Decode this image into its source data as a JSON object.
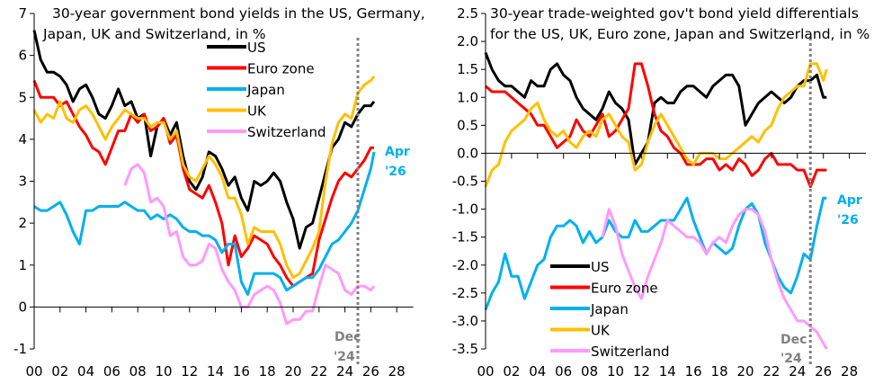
{
  "chart_data": [
    {
      "type": "line",
      "title_lines": [
        "30-year government bond yields in the US, Germany,",
        "Japan, UK and Switzerland, in %"
      ],
      "xlabel": "",
      "ylabel": "",
      "xlim": [
        2000,
        2029
      ],
      "ylim": [
        -1,
        7
      ],
      "yticks": [
        -1,
        0,
        1,
        2,
        3,
        4,
        5,
        6,
        7
      ],
      "ytick_labels": [
        "-1",
        "0",
        "1",
        "2",
        "3",
        "4",
        "5",
        "6",
        "7"
      ],
      "xticks": [
        2000,
        2002,
        2004,
        2006,
        2008,
        2010,
        2012,
        2014,
        2016,
        2018,
        2020,
        2022,
        2024,
        2026,
        2028
      ],
      "xtick_labels": [
        "00",
        "02",
        "04",
        "06",
        "08",
        "10",
        "12",
        "14",
        "16",
        "18",
        "20",
        "22",
        "24",
        "26",
        "28"
      ],
      "grid": false,
      "legend_position": "top-center",
      "vline": {
        "x": 2025.0,
        "label_lines": [
          "Dec",
          "'24"
        ],
        "color": "#808080"
      },
      "end_annotation": {
        "lines": [
          "Apr",
          "'26"
        ],
        "color": "#00b0f0"
      },
      "x": [
        2000.0,
        2000.5,
        2001.0,
        2001.5,
        2002.0,
        2002.5,
        2003.0,
        2003.5,
        2004.0,
        2004.5,
        2005.0,
        2005.5,
        2006.0,
        2006.5,
        2007.0,
        2007.5,
        2008.0,
        2008.5,
        2009.0,
        2009.5,
        2010.0,
        2010.5,
        2011.0,
        2011.5,
        2012.0,
        2012.5,
        2013.0,
        2013.5,
        2014.0,
        2014.5,
        2015.0,
        2015.5,
        2016.0,
        2016.5,
        2017.0,
        2017.5,
        2018.0,
        2018.5,
        2019.0,
        2019.5,
        2020.0,
        2020.5,
        2021.0,
        2021.5,
        2022.0,
        2022.5,
        2023.0,
        2023.5,
        2024.0,
        2024.5,
        2025.0,
        2025.5,
        2026.0,
        2026.25
      ],
      "series": [
        {
          "name": "US",
          "color": "#000000",
          "values": [
            6.6,
            5.9,
            5.6,
            5.6,
            5.5,
            5.3,
            4.9,
            5.2,
            5.3,
            5.0,
            4.6,
            4.5,
            4.8,
            5.2,
            4.8,
            4.9,
            4.5,
            4.6,
            3.6,
            4.3,
            4.5,
            4.1,
            4.4,
            3.6,
            3.0,
            2.8,
            3.1,
            3.7,
            3.6,
            3.3,
            2.9,
            3.1,
            2.6,
            2.3,
            3.0,
            2.9,
            3.0,
            3.2,
            3.0,
            2.5,
            2.1,
            1.4,
            1.9,
            2.0,
            2.6,
            3.2,
            3.8,
            4.0,
            4.4,
            4.3,
            4.6,
            4.8,
            4.8,
            4.9
          ]
        },
        {
          "name": "Euro zone",
          "color": "#ff0000",
          "values": [
            5.4,
            5.0,
            5.0,
            5.0,
            4.8,
            4.9,
            4.6,
            4.3,
            4.1,
            3.8,
            3.7,
            3.4,
            3.8,
            4.2,
            4.2,
            4.6,
            4.4,
            4.6,
            4.2,
            4.3,
            4.5,
            3.9,
            4.1,
            3.3,
            2.8,
            2.7,
            2.6,
            2.9,
            2.5,
            2.0,
            1.0,
            1.7,
            1.2,
            1.4,
            1.7,
            1.6,
            1.5,
            1.2,
            1.0,
            0.7,
            0.5,
            0.6,
            0.7,
            0.8,
            1.6,
            2.1,
            2.6,
            3.0,
            3.2,
            3.1,
            3.3,
            3.5,
            3.8,
            3.8
          ]
        },
        {
          "name": "Japan",
          "color": "#00b0f0",
          "values": [
            2.4,
            2.3,
            2.3,
            2.4,
            2.5,
            2.2,
            1.8,
            1.5,
            2.3,
            2.3,
            2.4,
            2.4,
            2.4,
            2.4,
            2.5,
            2.4,
            2.3,
            2.3,
            2.1,
            2.2,
            2.1,
            2.2,
            2.1,
            1.9,
            1.8,
            1.8,
            1.7,
            1.7,
            1.6,
            1.3,
            1.5,
            1.5,
            0.6,
            0.3,
            0.8,
            0.8,
            0.8,
            0.8,
            0.7,
            0.4,
            0.5,
            0.6,
            0.7,
            0.7,
            0.9,
            1.2,
            1.5,
            1.6,
            1.8,
            2.0,
            2.3,
            2.8,
            3.3,
            3.7
          ]
        },
        {
          "name": "UK",
          "color": "#ffc000",
          "values": [
            4.7,
            4.4,
            4.6,
            4.5,
            4.9,
            4.5,
            4.4,
            4.7,
            4.8,
            4.6,
            4.3,
            4.0,
            4.3,
            4.5,
            4.7,
            4.6,
            4.5,
            4.5,
            4.3,
            4.4,
            4.4,
            4.0,
            4.2,
            3.4,
            3.1,
            3.0,
            3.3,
            3.6,
            3.4,
            3.1,
            2.6,
            2.6,
            2.2,
            1.5,
            1.9,
            1.8,
            1.8,
            1.8,
            1.5,
            1.0,
            0.7,
            0.8,
            1.1,
            1.4,
            1.8,
            3.0,
            3.9,
            4.4,
            4.6,
            4.5,
            5.1,
            5.3,
            5.4,
            5.5
          ]
        },
        {
          "name": "Switzerland",
          "color": "#ff99ff",
          "values": [
            null,
            null,
            null,
            null,
            null,
            null,
            null,
            null,
            null,
            null,
            null,
            null,
            null,
            null,
            2.9,
            3.3,
            3.4,
            3.2,
            2.5,
            2.6,
            2.4,
            1.7,
            1.8,
            1.2,
            1.0,
            1.0,
            1.1,
            1.5,
            1.4,
            0.9,
            0.6,
            0.4,
            0.0,
            0.0,
            0.3,
            0.4,
            0.5,
            0.4,
            0.1,
            -0.4,
            -0.3,
            -0.3,
            -0.1,
            -0.1,
            0.5,
            1.0,
            0.9,
            0.8,
            0.4,
            0.3,
            0.5,
            0.5,
            0.4,
            0.5
          ]
        }
      ]
    },
    {
      "type": "line",
      "title_lines": [
        "30-year trade-weighted gov't bond yield differentials",
        "for the US, UK, Euro zone, Japan and Switzerland, in %"
      ],
      "xlabel": "",
      "ylabel": "",
      "xlim": [
        2000,
        2029
      ],
      "ylim": [
        -3.5,
        2.5
      ],
      "yticks": [
        -3.5,
        -3.0,
        -2.5,
        -2.0,
        -1.5,
        -1.0,
        -0.5,
        0.0,
        0.5,
        1.0,
        1.5,
        2.0,
        2.5
      ],
      "ytick_labels": [
        "-3.5",
        "-3.0",
        "-2.5",
        "-2.0",
        "-1.5",
        "-1.0",
        "-0.5",
        "0.0",
        "0.5",
        "1.0",
        "1.5",
        "2.0",
        "2.5"
      ],
      "xticks": [
        2000,
        2002,
        2004,
        2006,
        2008,
        2010,
        2012,
        2014,
        2016,
        2018,
        2020,
        2022,
        2024,
        2026,
        2028
      ],
      "xtick_labels": [
        "00",
        "02",
        "04",
        "06",
        "08",
        "10",
        "12",
        "14",
        "16",
        "18",
        "20",
        "22",
        "24",
        "26",
        "28"
      ],
      "grid": false,
      "legend_position": "bottom-left",
      "vline": {
        "x": 2025.0,
        "label_lines": [
          "Dec",
          "'24"
        ],
        "color": "#808080"
      },
      "end_annotation": {
        "lines": [
          "Apr",
          "'26"
        ],
        "color": "#00b0f0"
      },
      "x": [
        2000.0,
        2000.5,
        2001.0,
        2001.5,
        2002.0,
        2002.5,
        2003.0,
        2003.5,
        2004.0,
        2004.5,
        2005.0,
        2005.5,
        2006.0,
        2006.5,
        2007.0,
        2007.5,
        2008.0,
        2008.5,
        2009.0,
        2009.5,
        2010.0,
        2010.5,
        2011.0,
        2011.5,
        2012.0,
        2012.5,
        2013.0,
        2013.5,
        2014.0,
        2014.5,
        2015.0,
        2015.5,
        2016.0,
        2016.5,
        2017.0,
        2017.5,
        2018.0,
        2018.5,
        2019.0,
        2019.5,
        2020.0,
        2020.5,
        2021.0,
        2021.5,
        2022.0,
        2022.5,
        2023.0,
        2023.5,
        2024.0,
        2024.5,
        2025.0,
        2025.5,
        2026.0,
        2026.25
      ],
      "series": [
        {
          "name": "US",
          "color": "#000000",
          "values": [
            1.8,
            1.5,
            1.3,
            1.2,
            1.2,
            1.1,
            1.0,
            1.3,
            1.2,
            1.2,
            1.5,
            1.6,
            1.4,
            1.3,
            1.0,
            0.8,
            0.7,
            0.6,
            0.8,
            1.1,
            0.9,
            0.8,
            0.6,
            -0.2,
            0.0,
            0.2,
            0.9,
            1.0,
            0.9,
            0.9,
            1.1,
            1.2,
            1.2,
            1.1,
            1.0,
            1.2,
            1.3,
            1.4,
            1.4,
            1.2,
            0.5,
            0.7,
            0.9,
            1.0,
            1.1,
            1.0,
            0.9,
            1.0,
            1.2,
            1.3,
            1.3,
            1.4,
            1.0,
            1.0
          ]
        },
        {
          "name": "Euro zone",
          "color": "#ff0000",
          "values": [
            1.2,
            1.1,
            1.1,
            1.1,
            1.0,
            0.9,
            0.8,
            0.7,
            0.5,
            0.5,
            0.3,
            0.1,
            0.2,
            0.3,
            0.6,
            0.4,
            0.3,
            0.5,
            0.7,
            0.3,
            0.4,
            0.6,
            0.8,
            1.6,
            1.6,
            1.2,
            0.7,
            0.4,
            0.3,
            0.1,
            0.0,
            -0.2,
            -0.2,
            -0.2,
            -0.1,
            -0.1,
            -0.3,
            -0.2,
            -0.3,
            -0.1,
            -0.2,
            -0.4,
            -0.3,
            -0.1,
            0.0,
            -0.2,
            -0.2,
            -0.2,
            -0.3,
            -0.3,
            -0.6,
            -0.3,
            -0.3,
            -0.3
          ]
        },
        {
          "name": "Japan",
          "color": "#00b0f0",
          "values": [
            -2.8,
            -2.5,
            -2.3,
            -1.8,
            -2.2,
            -2.2,
            -2.6,
            -2.3,
            -2.0,
            -1.9,
            -1.5,
            -1.3,
            -1.3,
            -1.2,
            -1.3,
            -1.6,
            -1.4,
            -1.6,
            -1.5,
            -1.2,
            -1.4,
            -1.5,
            -1.5,
            -1.2,
            -1.4,
            -1.4,
            -1.3,
            -1.2,
            -1.2,
            -1.2,
            -1.0,
            -0.8,
            -1.2,
            -1.5,
            -1.8,
            -1.6,
            -1.7,
            -1.8,
            -1.7,
            -1.3,
            -1.0,
            -0.9,
            -1.1,
            -1.6,
            -1.9,
            -2.2,
            -2.4,
            -2.5,
            -2.2,
            -1.8,
            -1.9,
            -1.3,
            -0.8,
            -0.8
          ]
        },
        {
          "name": "Switzerland",
          "color": "#ff99ff",
          "values": [
            null,
            null,
            null,
            null,
            null,
            null,
            null,
            null,
            null,
            null,
            null,
            null,
            null,
            null,
            null,
            null,
            null,
            null,
            -1.5,
            -1.0,
            -1.3,
            -1.8,
            -2.1,
            -2.4,
            -2.6,
            -2.2,
            -1.9,
            -1.6,
            -1.2,
            -1.3,
            -1.4,
            -1.5,
            -1.5,
            -1.6,
            -1.8,
            -1.6,
            -1.5,
            -1.6,
            -1.3,
            -1.1,
            -1.0,
            -1.0,
            -1.1,
            -1.4,
            -1.9,
            -2.3,
            -2.6,
            -2.8,
            -3.0,
            -3.0,
            -3.1,
            -3.2,
            -3.4,
            -3.5
          ]
        },
        {
          "name": "UK",
          "color": "#ffc000",
          "values": [
            -0.6,
            -0.3,
            -0.2,
            0.2,
            0.4,
            0.5,
            0.6,
            0.8,
            0.9,
            0.6,
            0.4,
            0.3,
            0.4,
            0.2,
            0.1,
            0.3,
            0.4,
            0.3,
            0.6,
            0.7,
            0.5,
            0.3,
            0.2,
            -0.3,
            -0.2,
            0.2,
            0.5,
            0.7,
            0.5,
            0.3,
            0.1,
            -0.1,
            -0.2,
            0.0,
            0.0,
            0.0,
            -0.1,
            -0.1,
            0.0,
            0.1,
            0.2,
            0.3,
            0.2,
            0.4,
            0.5,
            0.8,
            1.0,
            1.1,
            1.2,
            1.2,
            1.6,
            1.6,
            1.3,
            1.5
          ]
        }
      ]
    }
  ],
  "legends": [
    {
      "items": [
        "US",
        "Euro zone",
        "Japan",
        "UK",
        "Switzerland"
      ]
    },
    {
      "items": [
        "US",
        "Euro zone",
        "Japan",
        "UK",
        "Switzerland"
      ]
    }
  ]
}
